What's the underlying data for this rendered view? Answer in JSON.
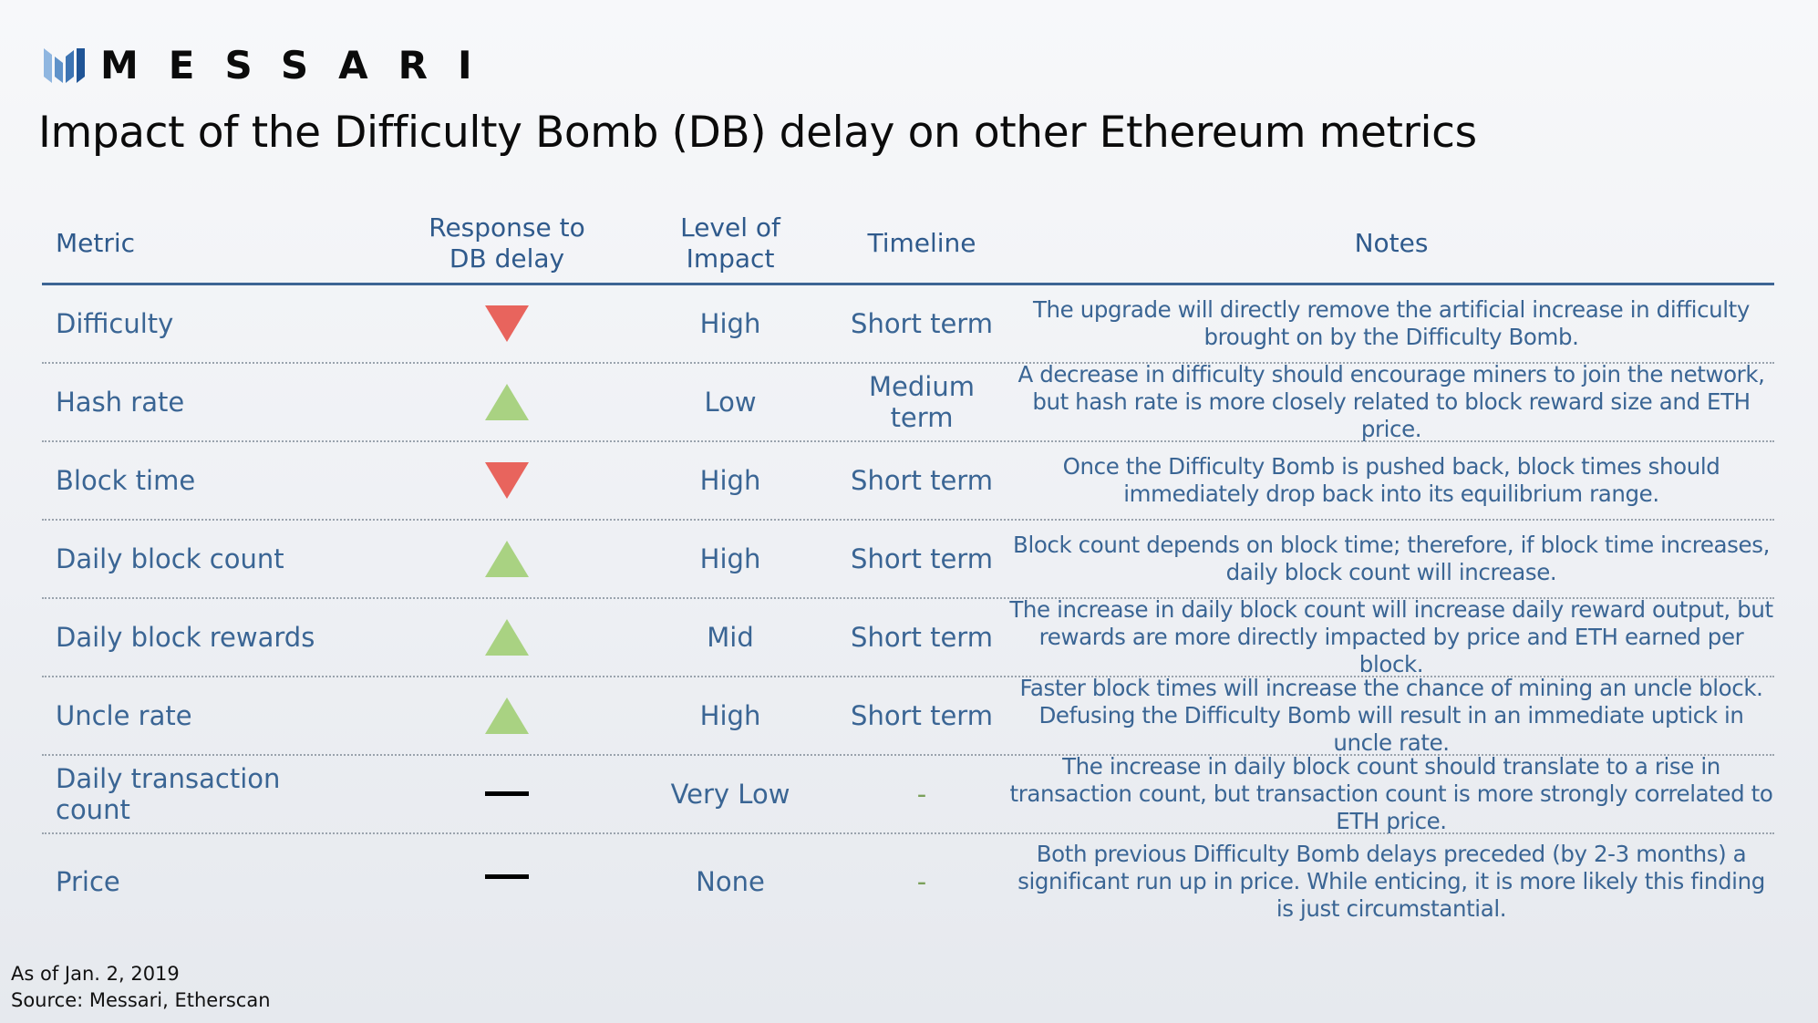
{
  "brand": {
    "logo_text": "MESSARI",
    "logo_icon": "messari-logo-icon"
  },
  "title": "Impact of the Difficulty Bomb (DB) delay on other Ethereum metrics",
  "columns": {
    "metric": "Metric",
    "response": "Response to DB delay",
    "level": "Level of Impact",
    "timeline": "Timeline",
    "notes": "Notes"
  },
  "colors": {
    "down": "#e8645d",
    "up": "#a9d282",
    "neutral": "#000000",
    "header_text": "#2f5a8c",
    "rule": "#3d6594"
  },
  "rows": [
    {
      "metric": "Difficulty",
      "response": "down",
      "level": "High",
      "timeline": "Short term",
      "notes": "The upgrade will directly remove the artificial increase in difficulty brought on by the Difficulty Bomb."
    },
    {
      "metric": "Hash rate",
      "response": "up",
      "level": "Low",
      "timeline": "Medium term",
      "notes": "A decrease in difficulty should encourage miners to join the network, but hash rate is more closely related to block reward size and ETH price."
    },
    {
      "metric": "Block time",
      "response": "down",
      "level": "High",
      "timeline": "Short term",
      "notes": "Once the Difficulty Bomb is pushed back, block times should immediately drop back into its equilibrium range."
    },
    {
      "metric": "Daily block count",
      "response": "up",
      "level": "High",
      "timeline": "Short term",
      "notes": "Block count depends on block time; therefore, if block time increases, daily block count will increase."
    },
    {
      "metric": "Daily block rewards",
      "response": "up",
      "level": "Mid",
      "timeline": "Short term",
      "notes": "The increase in daily block count will increase daily reward output, but rewards are more directly impacted by price and ETH earned per block."
    },
    {
      "metric": "Uncle rate",
      "response": "up",
      "level": "High",
      "timeline": "Short term",
      "notes": "Faster block times will increase the chance of mining an uncle block. Defusing the Difficulty Bomb will result in an immediate uptick in uncle rate."
    },
    {
      "metric": "Daily transaction count",
      "response": "neutral",
      "level": "Very Low",
      "timeline": "-",
      "notes": "The increase in daily block count should translate to a rise in transaction count, but transaction count is more strongly correlated to ETH price."
    },
    {
      "metric": "Price",
      "response": "neutral",
      "level": "None",
      "timeline": "-",
      "notes": "Both previous Difficulty Bomb delays preceded (by 2-3 months) a significant run up in price. While enticing, it is more likely this finding is just circumstantial."
    }
  ],
  "footer": {
    "as_of": "As of Jan. 2, 2019",
    "source": "Source: Messari, Etherscan"
  }
}
